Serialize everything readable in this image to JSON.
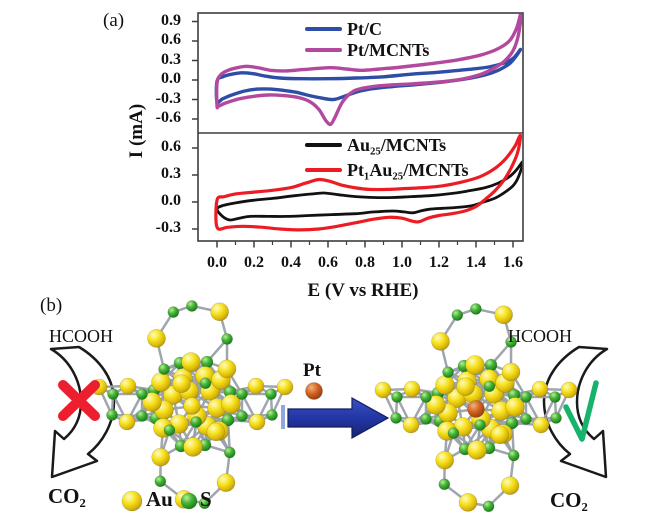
{
  "figure": {
    "panel_a_label": "(a)",
    "panel_b_label": "(b)",
    "background": "#ffffff"
  },
  "chart_data": {
    "type": "line",
    "subtype": "cyclic-voltammetry",
    "title": "",
    "xlabel": "E (V vs RHE)",
    "ylabel": "I (mA)",
    "x_tick_labels": [
      "0.0",
      "0.2",
      "0.4",
      "0.6",
      "0.8",
      "1.0",
      "1.2",
      "1.4",
      "1.6"
    ],
    "xlim": [
      -0.1,
      1.66
    ],
    "grid": false,
    "legend_position": "top-center-inside",
    "panels": [
      {
        "name": "top",
        "ylim": [
          -0.75,
          1.03
        ],
        "y_tick_labels": [
          "0.9",
          "0.6",
          "0.3",
          "0.0",
          "-0.3",
          "-0.6"
        ],
        "series": [
          {
            "name": "Pt/C",
            "color": "#2e4da7",
            "loop_V_mA": [
              [
                0.0,
                -0.33
              ],
              [
                0.0,
                -0.02
              ],
              [
                0.03,
                0.05
              ],
              [
                0.08,
                0.09
              ],
              [
                0.13,
                0.11
              ],
              [
                0.19,
                0.1
              ],
              [
                0.26,
                0.06
              ],
              [
                0.34,
                0.03
              ],
              [
                0.45,
                0.02
              ],
              [
                0.6,
                0.02
              ],
              [
                0.75,
                0.03
              ],
              [
                0.9,
                0.05
              ],
              [
                1.05,
                0.09
              ],
              [
                1.2,
                0.12
              ],
              [
                1.35,
                0.16
              ],
              [
                1.47,
                0.2
              ],
              [
                1.55,
                0.26
              ],
              [
                1.6,
                0.33
              ],
              [
                1.64,
                0.47
              ],
              [
                1.62,
                0.38
              ],
              [
                1.58,
                0.25
              ],
              [
                1.52,
                0.15
              ],
              [
                1.45,
                0.08
              ],
              [
                1.35,
                0.02
              ],
              [
                1.22,
                -0.03
              ],
              [
                1.08,
                -0.07
              ],
              [
                0.95,
                -0.1
              ],
              [
                0.85,
                -0.13
              ],
              [
                0.76,
                -0.18
              ],
              [
                0.68,
                -0.26
              ],
              [
                0.63,
                -0.3
              ],
              [
                0.57,
                -0.28
              ],
              [
                0.5,
                -0.24
              ],
              [
                0.43,
                -0.19
              ],
              [
                0.36,
                -0.16
              ],
              [
                0.29,
                -0.14
              ],
              [
                0.22,
                -0.14
              ],
              [
                0.15,
                -0.17
              ],
              [
                0.08,
                -0.23
              ],
              [
                0.03,
                -0.29
              ]
            ]
          },
          {
            "name": "Pt/MCNTs",
            "color": "#b3499f",
            "loop_V_mA": [
              [
                0.0,
                -0.4
              ],
              [
                0.0,
                -0.05
              ],
              [
                0.02,
                0.08
              ],
              [
                0.06,
                0.15
              ],
              [
                0.11,
                0.19
              ],
              [
                0.16,
                0.21
              ],
              [
                0.22,
                0.19
              ],
              [
                0.29,
                0.15
              ],
              [
                0.37,
                0.14
              ],
              [
                0.46,
                0.16
              ],
              [
                0.55,
                0.18
              ],
              [
                0.62,
                0.19
              ],
              [
                0.7,
                0.17
              ],
              [
                0.78,
                0.15
              ],
              [
                0.88,
                0.17
              ],
              [
                1.0,
                0.2
              ],
              [
                1.15,
                0.25
              ],
              [
                1.3,
                0.31
              ],
              [
                1.42,
                0.38
              ],
              [
                1.51,
                0.47
              ],
              [
                1.58,
                0.6
              ],
              [
                1.62,
                0.8
              ],
              [
                1.645,
                1.05
              ],
              [
                1.63,
                0.7
              ],
              [
                1.6,
                0.45
              ],
              [
                1.55,
                0.28
              ],
              [
                1.49,
                0.17
              ],
              [
                1.42,
                0.08
              ],
              [
                1.32,
                0.01
              ],
              [
                1.2,
                -0.03
              ],
              [
                1.05,
                -0.06
              ],
              [
                0.92,
                -0.08
              ],
              [
                0.82,
                -0.11
              ],
              [
                0.74,
                -0.17
              ],
              [
                0.68,
                -0.33
              ],
              [
                0.64,
                -0.56
              ],
              [
                0.615,
                -0.68
              ],
              [
                0.59,
                -0.63
              ],
              [
                0.55,
                -0.45
              ],
              [
                0.5,
                -0.33
              ],
              [
                0.44,
                -0.27
              ],
              [
                0.36,
                -0.24
              ],
              [
                0.28,
                -0.23
              ],
              [
                0.2,
                -0.25
              ],
              [
                0.12,
                -0.29
              ],
              [
                0.05,
                -0.35
              ],
              [
                0.01,
                -0.4
              ]
            ]
          }
        ]
      },
      {
        "name": "bottom",
        "ylim": [
          -0.43,
          0.77
        ],
        "y_tick_labels": [
          "0.6",
          "0.3",
          "0.0",
          "-0.3"
        ],
        "series": [
          {
            "name": "Au₂₅/MCNTs",
            "color": "#111111",
            "loop_V_mA": [
              [
                0.0,
                -0.08
              ],
              [
                0.03,
                -0.04
              ],
              [
                0.1,
                -0.01
              ],
              [
                0.2,
                0.02
              ],
              [
                0.3,
                0.04
              ],
              [
                0.42,
                0.07
              ],
              [
                0.52,
                0.09
              ],
              [
                0.58,
                0.1
              ],
              [
                0.66,
                0.08
              ],
              [
                0.75,
                0.06
              ],
              [
                0.85,
                0.05
              ],
              [
                0.95,
                0.05
              ],
              [
                1.05,
                0.06
              ],
              [
                1.15,
                0.07
              ],
              [
                1.25,
                0.09
              ],
              [
                1.35,
                0.12
              ],
              [
                1.45,
                0.16
              ],
              [
                1.52,
                0.21
              ],
              [
                1.58,
                0.28
              ],
              [
                1.62,
                0.36
              ],
              [
                1.655,
                0.45
              ],
              [
                1.63,
                0.28
              ],
              [
                1.6,
                0.18
              ],
              [
                1.55,
                0.1
              ],
              [
                1.5,
                0.04
              ],
              [
                1.44,
                0.0
              ],
              [
                1.38,
                -0.04
              ],
              [
                1.3,
                -0.06
              ],
              [
                1.22,
                -0.07
              ],
              [
                1.15,
                -0.08
              ],
              [
                1.1,
                -0.1
              ],
              [
                1.06,
                -0.12
              ],
              [
                1.01,
                -0.11
              ],
              [
                0.95,
                -0.1
              ],
              [
                0.85,
                -0.11
              ],
              [
                0.75,
                -0.13
              ],
              [
                0.62,
                -0.14
              ],
              [
                0.5,
                -0.15
              ],
              [
                0.38,
                -0.16
              ],
              [
                0.28,
                -0.16
              ],
              [
                0.18,
                -0.16
              ],
              [
                0.12,
                -0.18
              ],
              [
                0.07,
                -0.2
              ],
              [
                0.03,
                -0.16
              ]
            ]
          },
          {
            "name": "Pt₁Au₂₅/MCNTs",
            "color": "#ed1c24",
            "loop_V_mA": [
              [
                0.0,
                -0.28
              ],
              [
                0.0,
                0.02
              ],
              [
                0.04,
                0.06
              ],
              [
                0.1,
                0.09
              ],
              [
                0.2,
                0.11
              ],
              [
                0.3,
                0.13
              ],
              [
                0.4,
                0.16
              ],
              [
                0.48,
                0.21
              ],
              [
                0.55,
                0.25
              ],
              [
                0.61,
                0.23
              ],
              [
                0.67,
                0.19
              ],
              [
                0.74,
                0.16
              ],
              [
                0.82,
                0.14
              ],
              [
                0.92,
                0.14
              ],
              [
                1.02,
                0.15
              ],
              [
                1.12,
                0.16
              ],
              [
                1.22,
                0.18
              ],
              [
                1.32,
                0.22
              ],
              [
                1.42,
                0.28
              ],
              [
                1.5,
                0.37
              ],
              [
                1.56,
                0.48
              ],
              [
                1.61,
                0.62
              ],
              [
                1.64,
                0.74
              ],
              [
                1.625,
                0.55
              ],
              [
                1.59,
                0.38
              ],
              [
                1.55,
                0.24
              ],
              [
                1.5,
                0.12
              ],
              [
                1.45,
                0.03
              ],
              [
                1.4,
                -0.05
              ],
              [
                1.34,
                -0.1
              ],
              [
                1.27,
                -0.13
              ],
              [
                1.2,
                -0.15
              ],
              [
                1.14,
                -0.18
              ],
              [
                1.09,
                -0.22
              ],
              [
                1.05,
                -0.21
              ],
              [
                1.0,
                -0.18
              ],
              [
                0.93,
                -0.17
              ],
              [
                0.85,
                -0.19
              ],
              [
                0.75,
                -0.23
              ],
              [
                0.65,
                -0.27
              ],
              [
                0.55,
                -0.3
              ],
              [
                0.45,
                -0.31
              ],
              [
                0.34,
                -0.3
              ],
              [
                0.24,
                -0.28
              ],
              [
                0.14,
                -0.27
              ],
              [
                0.06,
                -0.28
              ]
            ]
          }
        ]
      }
    ]
  },
  "panel_b": {
    "left_reaction": {
      "reactant": "HCOOH",
      "product": "CO₂",
      "status": "blocked"
    },
    "right_reaction": {
      "reactant": "HCOOH",
      "product": "CO₂",
      "status": "allowed"
    },
    "dopant_label": "Pt",
    "atom_legend": [
      {
        "symbol": "Au",
        "color": "#f2d80e"
      },
      {
        "symbol": "S",
        "color": "#2da32d"
      }
    ],
    "colors": {
      "au": "#f2d80e",
      "s": "#2da32d",
      "pt": "#b84c17",
      "bond": "#9aa1a9",
      "arrow_blue": "#22379f",
      "cross_red": "#ed1f2f",
      "check_green": "#17b26b"
    }
  }
}
